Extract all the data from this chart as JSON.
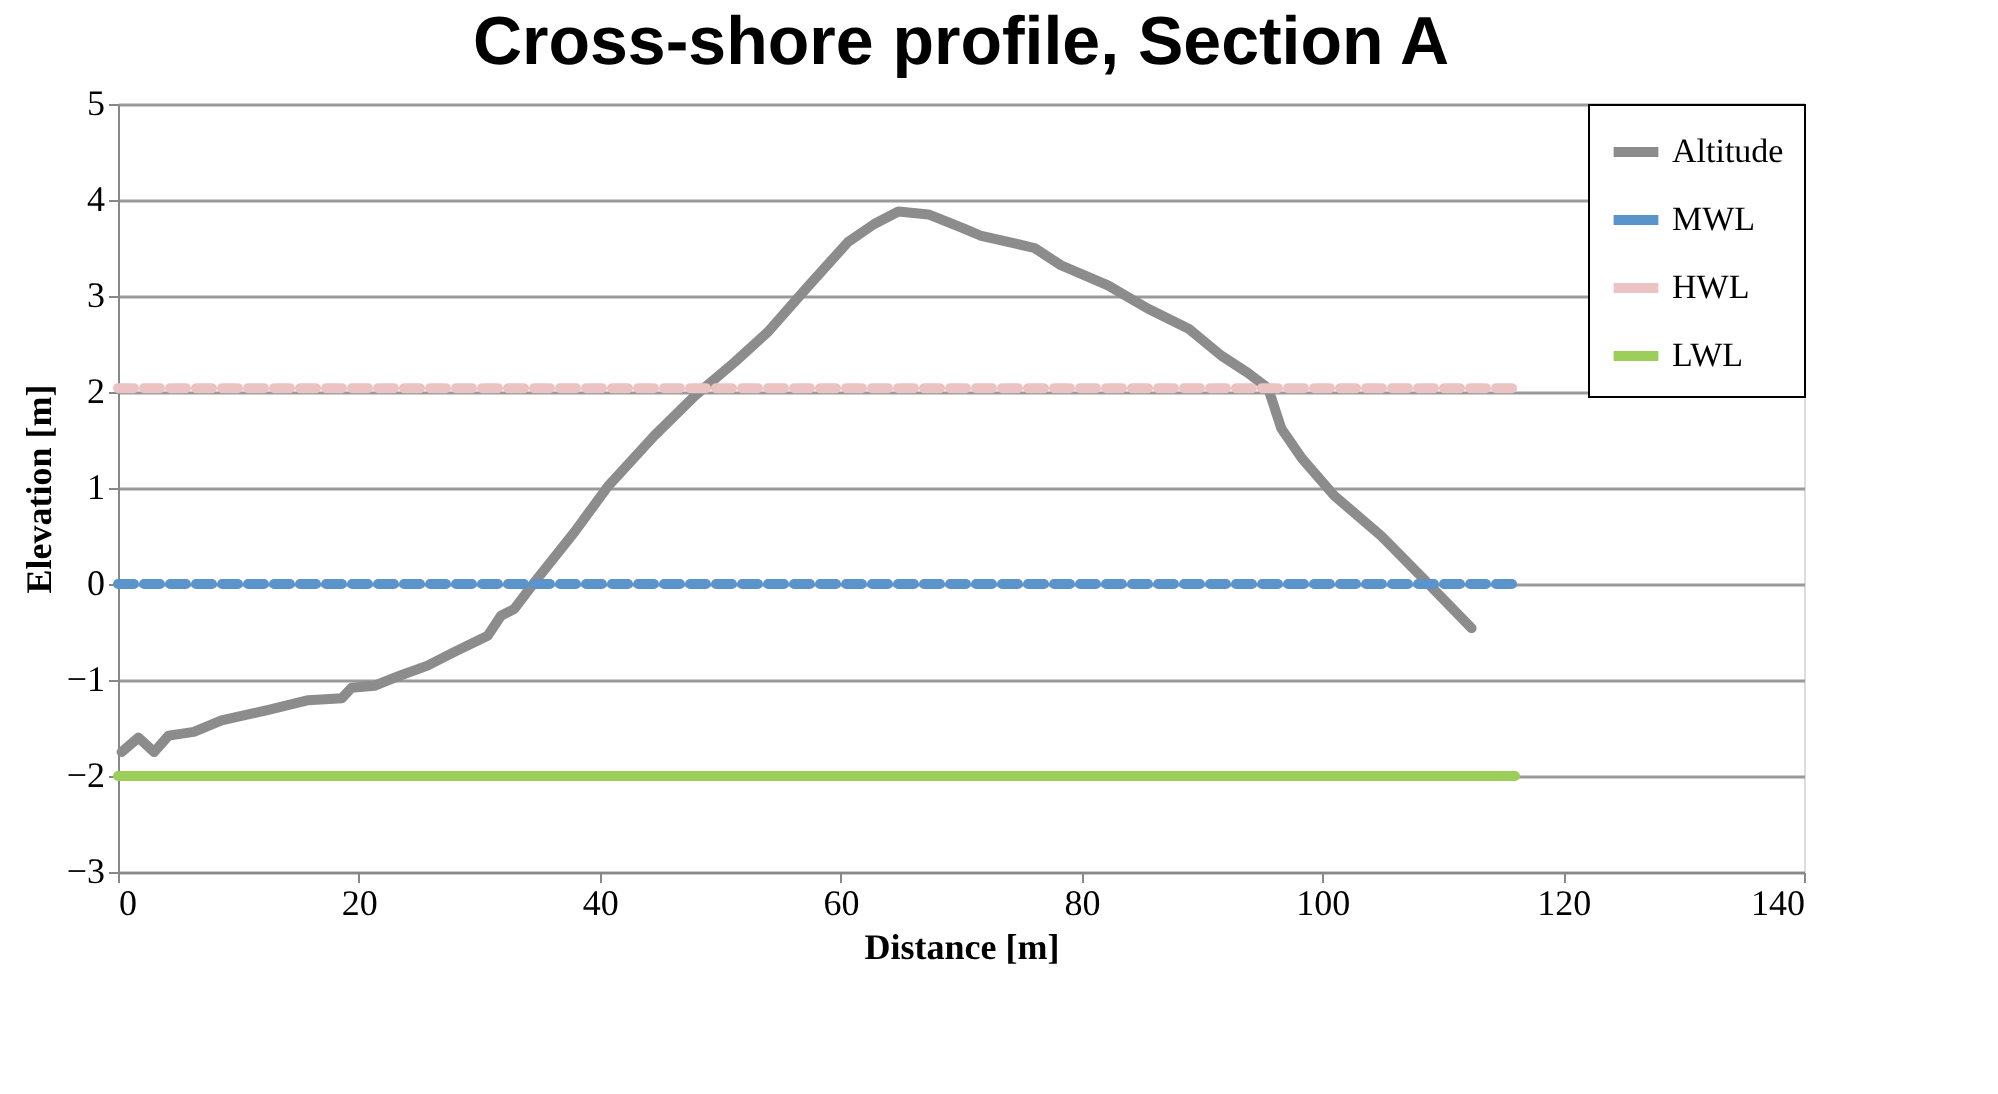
{
  "chart_data": {
    "type": "line",
    "title": "Cross-shore profile, Section A",
    "xlabel": "Distance [m]",
    "ylabel": "Elevation [m]",
    "xlim": [
      0,
      140
    ],
    "xticks": [
      0,
      20,
      40,
      60,
      80,
      100,
      120,
      140
    ],
    "ylim": [
      -3,
      5
    ],
    "yticks": [
      -3,
      -2,
      -1,
      0,
      1,
      2,
      3,
      4,
      5
    ],
    "grid": "y",
    "legend": "top right",
    "series": [
      {
        "name": "Altitude",
        "color": "#8c8c8c",
        "line_style": "solid",
        "x": [
          0.3,
          1.7,
          3.0,
          4.2,
          6.3,
          8.6,
          12.5,
          15.8,
          18.6,
          19.4,
          21.3,
          23.5,
          25.7,
          27.9,
          30.7,
          31.8,
          32.9,
          34.6,
          37.9,
          40.7,
          44.5,
          47.9,
          51.2,
          54.0,
          57.3,
          60.6,
          62.8,
          64.8,
          67.3,
          70.1,
          71.6,
          76.1,
          78.3,
          82.2,
          85.5,
          88.9,
          91.6,
          93.8,
          95.5,
          96.6,
          98.3,
          101.0,
          104.9,
          108.2,
          112.4
        ],
        "values": [
          -1.75,
          -1.6,
          -1.75,
          -1.58,
          -1.54,
          -1.42,
          -1.31,
          -1.21,
          -1.19,
          -1.08,
          -1.06,
          -0.95,
          -0.85,
          -0.71,
          -0.54,
          -0.33,
          -0.26,
          0.02,
          0.54,
          1.02,
          1.54,
          1.96,
          2.31,
          2.63,
          3.1,
          3.56,
          3.75,
          3.88,
          3.85,
          3.71,
          3.63,
          3.5,
          3.32,
          3.11,
          2.87,
          2.66,
          2.38,
          2.2,
          2.04,
          1.62,
          1.31,
          0.92,
          0.5,
          0.08,
          -0.46
        ]
      },
      {
        "name": "MWL",
        "color": "#5b93cb",
        "line_style": "dashed",
        "x": [
          0,
          116
        ],
        "values": [
          0,
          0
        ]
      },
      {
        "name": "HWL",
        "color": "#ecc3c3",
        "line_style": "dashed",
        "x": [
          0,
          116
        ],
        "values": [
          2.04,
          2.04
        ]
      },
      {
        "name": "LWL",
        "color": "#9ccf5a",
        "line_style": "solid",
        "x": [
          0,
          116
        ],
        "values": [
          -2,
          -2
        ]
      }
    ]
  }
}
